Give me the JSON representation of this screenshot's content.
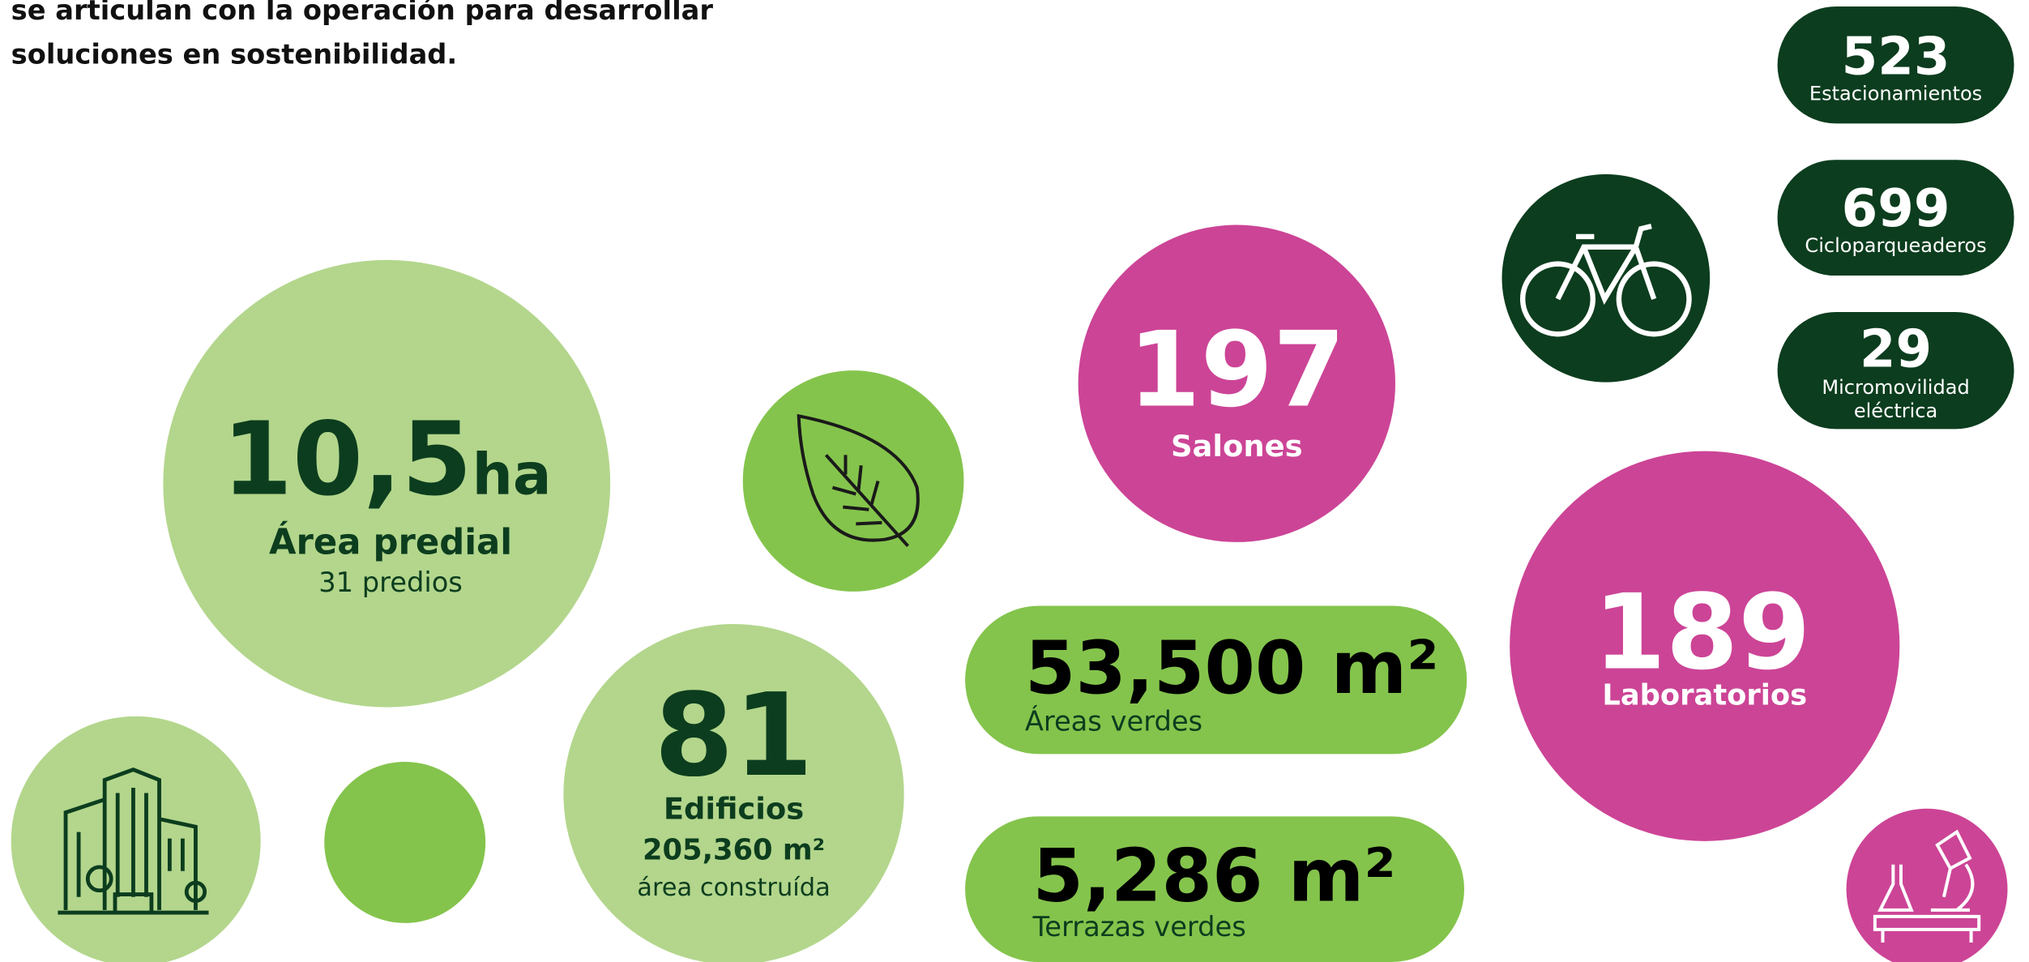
{
  "intro": {
    "lines": [
      "se articulan con la operación para desarrollar",
      "soluciones en sostenibilidad."
    ]
  },
  "area": {
    "value": "10,5",
    "unit": "ha",
    "label": "Área predial",
    "detail": "31 predios"
  },
  "buildings": {
    "value": "81",
    "label": "Edificios",
    "area": "205,360 m²",
    "detail": "área construída"
  },
  "green_areas": {
    "value": "53,500 m²",
    "label": "Áreas verdes"
  },
  "green_terraces": {
    "value": "5,286 m²",
    "label": "Terrazas verdes"
  },
  "classrooms": {
    "value": "197",
    "label": "Salones"
  },
  "labs": {
    "value": "189",
    "label": "Laboratorios"
  },
  "parking": {
    "value": "523",
    "label": "Estacionamientos"
  },
  "bike_parking": {
    "value": "699",
    "label": "Cicloparqueaderos"
  },
  "micromobility": {
    "value": "29",
    "label_lines": [
      "Micromovilidad",
      "eléctrica"
    ]
  }
}
